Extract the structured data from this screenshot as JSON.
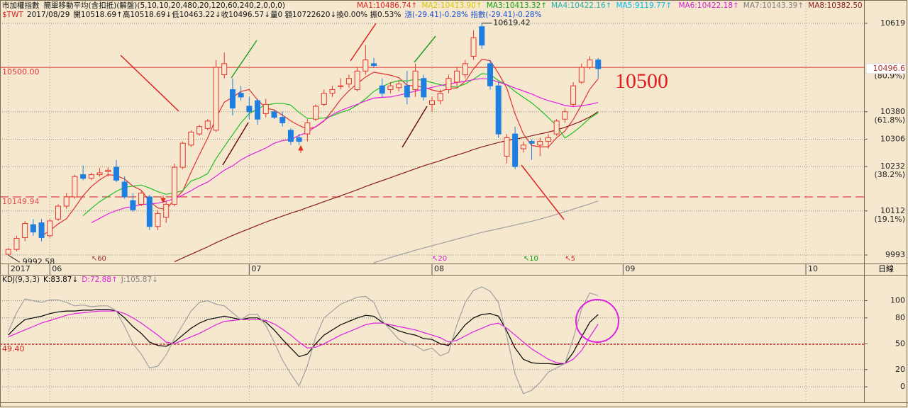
{
  "header": {
    "title": "市加權指數",
    "indicator": "簡單移動平均(含扣抵)(解盤)(5,10,10,20,480,20,120,60,240,2,0,0,0)",
    "ma_values": [
      {
        "text": "MA1:10486.74↑",
        "color": "#e02020"
      },
      {
        "text": "MA2:10413.90↑",
        "color": "#d8c800"
      },
      {
        "text": "MA3:10413.32↑",
        "color": "#10a010"
      },
      {
        "text": "MA4:10422.16↑",
        "color": "#20b0b0"
      },
      {
        "text": "MA5:9119.77↑",
        "color": "#00b8f0"
      },
      {
        "text": "MA6:10422.18↑",
        "color": "#d020d0"
      },
      {
        "text": "MA7:10143.39↑",
        "color": "#808080"
      },
      {
        "text": "MA8:10382.50",
        "color": "#8b1a1a"
      }
    ],
    "symbol": "$TWT",
    "date": "2017/08/29",
    "quote": "開10518.69↑高10518.69↓低10463.22↓收10496.57↓量0 額10722620↓換0.00% 振0.53%",
    "change": "漲(-29.41)-0.28% 指數(-29.41)-0.28%",
    "period": "日線"
  },
  "chart_data": [
    {
      "type": "candlestick",
      "up_color": "#e8352a",
      "down_color": "#1e7fe0",
      "open": [
        9995,
        10008,
        10040,
        10075,
        10080,
        10045,
        10090,
        10125,
        10150,
        10210,
        10200,
        10210,
        10218,
        10230,
        10190,
        10140,
        10130,
        10150,
        10070,
        10095,
        10130,
        10230,
        10290,
        10320,
        10335,
        10330,
        10480,
        10440,
        10430,
        10395,
        10410,
        10375,
        10380,
        10365,
        10330,
        10310,
        10320,
        10360,
        10400,
        10430,
        10450,
        10455,
        10440,
        10490,
        10510,
        10450,
        10440,
        10445,
        10450,
        10440,
        10470,
        10400,
        10410,
        10440,
        10460,
        10480,
        10530,
        10610,
        10510,
        10450,
        10260,
        10320,
        10280,
        10300,
        10290,
        10300,
        10320,
        10360,
        10400,
        10460,
        10500,
        10520
      ],
      "high": [
        10012,
        10045,
        10085,
        10090,
        10090,
        10090,
        10130,
        10160,
        10210,
        10235,
        10215,
        10228,
        10230,
        10250,
        10205,
        10160,
        10165,
        10155,
        10115,
        10140,
        10240,
        10300,
        10330,
        10345,
        10360,
        10520,
        10540,
        10470,
        10450,
        10420,
        10415,
        10415,
        10385,
        10380,
        10335,
        10320,
        10360,
        10400,
        10440,
        10450,
        10470,
        10480,
        10500,
        10560,
        10525,
        10470,
        10460,
        10465,
        10490,
        10510,
        10480,
        10420,
        10440,
        10480,
        10500,
        10520,
        10600,
        10619.42,
        10520,
        10460,
        10320,
        10340,
        10300,
        10305,
        10310,
        10320,
        10360,
        10390,
        10460,
        10510,
        10530,
        10525
      ],
      "low": [
        9992.58,
        10003,
        10030,
        10045,
        10030,
        10040,
        10085,
        10118,
        10145,
        10195,
        10195,
        10205,
        10205,
        10190,
        10145,
        10110,
        10125,
        10060,
        10060,
        10080,
        10125,
        10225,
        10285,
        10315,
        10330,
        10325,
        10470,
        10370,
        10410,
        10360,
        10345,
        10365,
        10360,
        10340,
        10290,
        10290,
        10300,
        10355,
        10395,
        10420,
        10440,
        10445,
        10435,
        10480,
        10500,
        10420,
        10430,
        10435,
        10400,
        10420,
        10410,
        10380,
        10400,
        10430,
        10450,
        10470,
        10520,
        10550,
        10440,
        10310,
        10240,
        10225,
        10270,
        10250,
        10260,
        10280,
        10315,
        10350,
        10395,
        10455,
        10495,
        10470
      ],
      "close": [
        10008,
        10038,
        10078,
        10055,
        10040,
        10085,
        10125,
        10150,
        10205,
        10200,
        10210,
        10215,
        10222,
        10195,
        10150,
        10115,
        10160,
        10070,
        10105,
        10130,
        10230,
        10295,
        10325,
        10340,
        10355,
        10500,
        10510,
        10390,
        10420,
        10380,
        10360,
        10400,
        10365,
        10350,
        10300,
        10300,
        10350,
        10395,
        10430,
        10440,
        10450,
        10470,
        10490,
        10520,
        10505,
        10430,
        10450,
        10455,
        10420,
        10490,
        10420,
        10410,
        10430,
        10470,
        10490,
        10510,
        10580,
        10560,
        10450,
        10320,
        10310,
        10232,
        10290,
        10295,
        10300,
        10310,
        10355,
        10380,
        10450,
        10500,
        10520,
        10496.57
      ],
      "series": [
        {
          "color": "#e03030",
          "values": [
            null,
            null,
            null,
            null,
            10044,
            10059,
            10077,
            10091,
            10121,
            10153,
            10178,
            10196,
            10210,
            10208,
            10198,
            10179,
            10168,
            10138,
            10120,
            10116,
            10143,
            10166,
            10217,
            10264,
            10309,
            10363,
            10406,
            10419,
            10435,
            10440,
            10412,
            10390,
            10385,
            10371,
            10355,
            10343,
            10333,
            10339,
            10355,
            10383,
            10413,
            10437,
            10456,
            10474,
            10487,
            10483,
            10479,
            10472,
            10452,
            10449,
            10447,
            10439,
            10434,
            10444,
            10444,
            10462,
            10496,
            10522,
            10518,
            10484,
            10444,
            10374,
            10320,
            10289,
            10285,
            10285,
            10310,
            10328,
            10359,
            10399,
            10441,
            10469
          ]
        },
        {
          "color": "#20c020",
          "values": [
            null,
            null,
            null,
            null,
            null,
            null,
            null,
            null,
            null,
            10099,
            10119,
            10137,
            10151,
            10165,
            10176,
            10179,
            10182,
            10174,
            10164,
            10157,
            10161,
            10167,
            10193,
            10201,
            10213,
            10253,
            10286,
            10318,
            10350,
            10375,
            10388,
            10398,
            10402,
            10403,
            10398,
            10378,
            10362,
            10362,
            10363,
            10369,
            10378,
            10385,
            10398,
            10415,
            10435,
            10448,
            10458,
            10464,
            10463,
            10468,
            10465,
            10459,
            10453,
            10448,
            10447,
            10455,
            10468,
            10483,
            10481,
            10464,
            10453,
            10435,
            10419,
            10404,
            10385,
            10364,
            10342,
            10309,
            10324,
            10342,
            10363,
            10377
          ]
        },
        {
          "color": "#e020e0",
          "values": [
            null,
            null,
            null,
            null,
            null,
            null,
            null,
            null,
            null,
            null,
            10080,
            10092,
            10104,
            10113,
            10120,
            10124,
            10129,
            10131,
            10133,
            10138,
            10145,
            10155,
            10167,
            10180,
            10190,
            10206,
            10222,
            10234,
            10250,
            10262,
            10272,
            10282,
            10295,
            10302,
            10305,
            10316,
            10324,
            10340,
            10356,
            10372,
            10383,
            10392,
            10400,
            10409,
            10417,
            10419,
            10420,
            10425,
            10430,
            10436,
            10441,
            10446,
            10451,
            10455,
            10459,
            10462,
            10467,
            10470,
            10468,
            10460,
            10453,
            10444,
            10436,
            10428,
            10418,
            10410,
            10404,
            10397,
            10394,
            10396,
            10400,
            10405
          ]
        },
        {
          "color": "#8b1a1a",
          "values": [
            null,
            null,
            null,
            null,
            null,
            null,
            null,
            null,
            null,
            null,
            null,
            null,
            null,
            null,
            null,
            null,
            null,
            null,
            null,
            null,
            9975,
            9985,
            9995,
            10005,
            10015,
            10026,
            10036,
            10046,
            10055,
            10064,
            10073,
            10082,
            10090,
            10098,
            10106,
            10113,
            10121,
            10129,
            10137,
            10145,
            10153,
            10161,
            10169,
            10178,
            10186,
            10194,
            10202,
            10210,
            10218,
            10226,
            10234,
            10241,
            10248,
            10256,
            10263,
            10270,
            10278,
            10285,
            10291,
            10297,
            10302,
            10306,
            10310,
            10315,
            10320,
            10325,
            10331,
            10338,
            10346,
            10355,
            10366,
            10380
          ]
        },
        {
          "color": "#a0a0a0",
          "values": [
            null,
            null,
            null,
            null,
            null,
            null,
            null,
            null,
            null,
            null,
            null,
            null,
            null,
            null,
            null,
            null,
            null,
            null,
            null,
            null,
            null,
            null,
            null,
            null,
            null,
            null,
            null,
            null,
            null,
            null,
            null,
            null,
            null,
            null,
            null,
            null,
            null,
            null,
            null,
            null,
            null,
            null,
            null,
            null,
            9972,
            9979,
            9986,
            9993,
            9999,
            10006,
            10012,
            10018,
            10024,
            10030,
            10036,
            10042,
            10048,
            10054,
            10059,
            10064,
            10069,
            10074,
            10079,
            10084,
            10090,
            10096,
            10103,
            10110,
            10117,
            10124,
            10131,
            10139
          ]
        }
      ],
      "xlim": [
        -1,
        103
      ],
      "xticks": [
        {
          "value": 0,
          "label": "2017"
        },
        {
          "value": 5,
          "label": "06"
        },
        {
          "value": 29,
          "label": "07"
        },
        {
          "value": 51,
          "label": "08"
        },
        {
          "value": 74,
          "label": "09"
        },
        {
          "value": 96,
          "label": "10"
        }
      ],
      "ylim": [
        9970,
        10682
      ],
      "yticks": [
        10619,
        10380,
        10306,
        10232,
        10112,
        9993
      ],
      "fib_ticks": [
        {
          "value": 10499,
          "label": "(80.9%)"
        },
        {
          "value": 10380,
          "label": "(61.8%)"
        },
        {
          "value": 10232,
          "label": "(38.2%)"
        },
        {
          "value": 10112,
          "label": "(19.1%)"
        }
      ],
      "hlines": [
        {
          "value": 10500,
          "label": "10500.00",
          "color": "#e03030",
          "style": "solid"
        },
        {
          "value": 10149.94,
          "label": "10149.94",
          "color": "#e05050",
          "style": "dashed"
        }
      ],
      "last_price": {
        "value": 10496.57,
        "label": "10496.6"
      },
      "note": "10500",
      "ma_markers": [
        {
          "label": "↖60",
          "x": 10,
          "color": "#a03030"
        },
        {
          "label": "↖20",
          "x": 51,
          "color": "#d020d0"
        },
        {
          "label": "↖10",
          "x": 62,
          "color": "#10a010"
        },
        {
          "label": "↖5",
          "x": 67,
          "color": "#e03030"
        }
      ],
      "grid": true
    },
    {
      "type": "line",
      "title": "KDJ(9,3,3)",
      "series": [
        {
          "label": "K:83.87↓",
          "color": "#000000",
          "values": [
            60,
            70,
            78,
            80,
            82,
            85,
            87,
            88,
            88,
            89,
            89,
            90,
            90,
            88,
            80,
            70,
            62,
            52,
            48,
            47,
            52,
            60,
            68,
            74,
            78,
            80,
            82,
            80,
            78,
            80,
            80,
            75,
            66,
            55,
            45,
            35,
            38,
            50,
            60,
            66,
            72,
            76,
            80,
            83,
            82,
            75,
            70,
            65,
            62,
            60,
            56,
            55,
            50,
            48,
            60,
            72,
            80,
            84,
            85,
            82,
            65,
            45,
            32,
            28,
            27,
            27,
            26,
            27,
            40,
            58,
            75,
            83.87
          ]
        },
        {
          "label": "D:72.88↑",
          "color": "#e020e0",
          "values": [
            58,
            62,
            66,
            70,
            74,
            77,
            80,
            83,
            85,
            86,
            87,
            88,
            88,
            88,
            85,
            80,
            74,
            67,
            60,
            52,
            50,
            54,
            58,
            62,
            67,
            72,
            76,
            77,
            78,
            78,
            78,
            77,
            73,
            67,
            60,
            52,
            45,
            46,
            50,
            55,
            60,
            64,
            68,
            72,
            74,
            74,
            72,
            70,
            68,
            66,
            63,
            60,
            57,
            52,
            54,
            59,
            64,
            68,
            72,
            74,
            68,
            60,
            52,
            44,
            38,
            32,
            28,
            27,
            32,
            42,
            58,
            72.88
          ]
        },
        {
          "label": "J:105.87↓",
          "color": "#a0a0a0",
          "values": [
            64,
            86,
            102,
            100,
            98,
            101,
            101,
            98,
            94,
            95,
            93,
            94,
            94,
            88,
            70,
            50,
            38,
            22,
            24,
            37,
            56,
            72,
            88,
            98,
            100,
            96,
            94,
            86,
            78,
            84,
            84,
            71,
            52,
            31,
            15,
            1,
            24,
            58,
            80,
            88,
            96,
            100,
            104,
            105,
            98,
            77,
            66,
            55,
            50,
            48,
            42,
            45,
            36,
            40,
            72,
            98,
            112,
            116,
            111,
            98,
            59,
            15,
            -8,
            -4,
            5,
            17,
            22,
            27,
            56,
            90,
            109,
            105.87
          ]
        }
      ],
      "xlim": [
        -1,
        103
      ],
      "ylim": [
        -18,
        130
      ],
      "yticks": [
        100,
        80,
        50,
        20,
        0
      ],
      "hlines": [
        {
          "value": 49.4,
          "label": "49.40",
          "color": "#d02020",
          "style": "dashed"
        }
      ],
      "grid": true
    }
  ]
}
